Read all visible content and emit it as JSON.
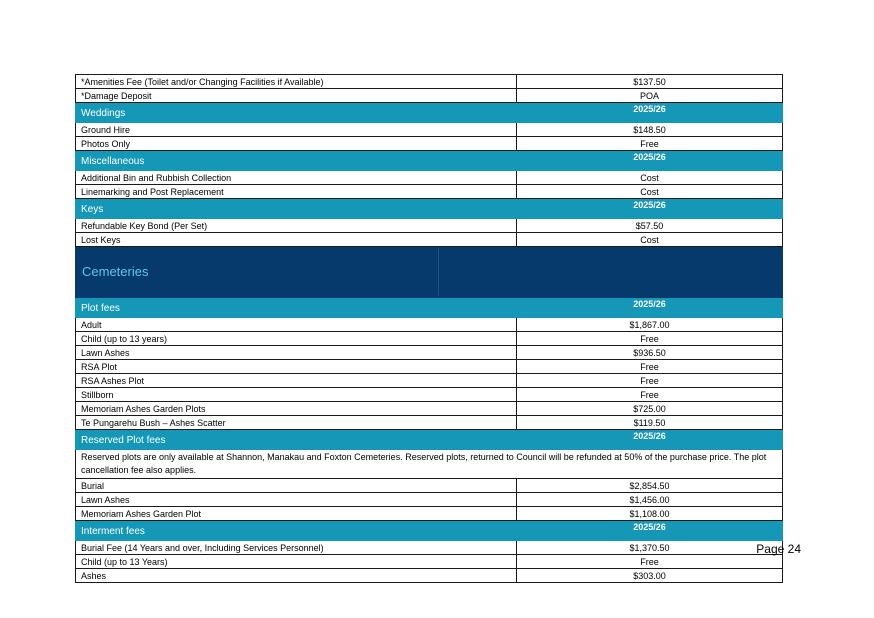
{
  "rows_top": [
    {
      "label": "*Amenities Fee (Toilet and/or Changing Facilities if Available)",
      "price": "$137.50"
    },
    {
      "label": "*Damage Deposit",
      "price": "POA"
    }
  ],
  "weddings": {
    "title": "Weddings",
    "year": "2025/26",
    "rows": [
      {
        "label": "Ground Hire",
        "price": "$148.50"
      },
      {
        "label": "Photos Only",
        "price": "Free"
      }
    ]
  },
  "miscellaneous": {
    "title": "Miscellaneous",
    "year": "2025/26",
    "rows": [
      {
        "label": "Additional Bin and Rubbish Collection",
        "price": "Cost"
      },
      {
        "label": "Linemarking and Post Replacement",
        "price": "Cost"
      }
    ]
  },
  "keys": {
    "title": "Keys",
    "year": "2025/26",
    "rows": [
      {
        "label": "Refundable Key Bond (Per Set)",
        "price": "$57.50"
      },
      {
        "label": "Lost Keys",
        "price": "Cost"
      }
    ]
  },
  "cemeteries": {
    "title": "Cemeteries"
  },
  "plot_fees": {
    "title": "Plot fees",
    "year": "2025/26",
    "rows": [
      {
        "label": "Adult",
        "price": "$1,867.00"
      },
      {
        "label": "Child (up to 13 years)",
        "price": "Free"
      },
      {
        "label": "Lawn Ashes",
        "price": "$936.50"
      },
      {
        "label": "RSA Plot",
        "price": "Free"
      },
      {
        "label": "RSA Ashes Plot",
        "price": "Free"
      },
      {
        "label": "Stillborn",
        "price": "Free"
      },
      {
        "label": "Memoriam Ashes Garden Plots",
        "price": "$725.00"
      },
      {
        "label": "Te Pungarehu Bush – Ashes Scatter",
        "price": "$119.50"
      }
    ]
  },
  "reserved_plot_fees": {
    "title": "Reserved Plot fees",
    "year": "2025/26",
    "note": "Reserved plots are only available at Shannon, Manakau and Foxton Cemeteries. Reserved plots, returned to Council will be refunded at 50% of the purchase price. The plot cancellation fee also applies.",
    "rows": [
      {
        "label": "Burial",
        "price": "$2,854.50"
      },
      {
        "label": "Lawn Ashes",
        "price": "$1,456.00"
      },
      {
        "label": "Memoriam Ashes Garden Plot",
        "price": "$1,108.00"
      }
    ]
  },
  "interment_fees": {
    "title": "Interment fees",
    "year": "2025/26",
    "rows": [
      {
        "label": "Burial Fee (14 Years and over, Including Services Personnel)",
        "price": "$1,370.50"
      },
      {
        "label": "Child (up to 13 Years)",
        "price": "Free"
      },
      {
        "label": "Ashes",
        "price": "$303.00"
      }
    ]
  },
  "page_number": "Page 24",
  "colors": {
    "section_header": "#1597b8",
    "cemeteries_banner": "#063a6d",
    "cemeteries_text": "#5fc8e6"
  }
}
